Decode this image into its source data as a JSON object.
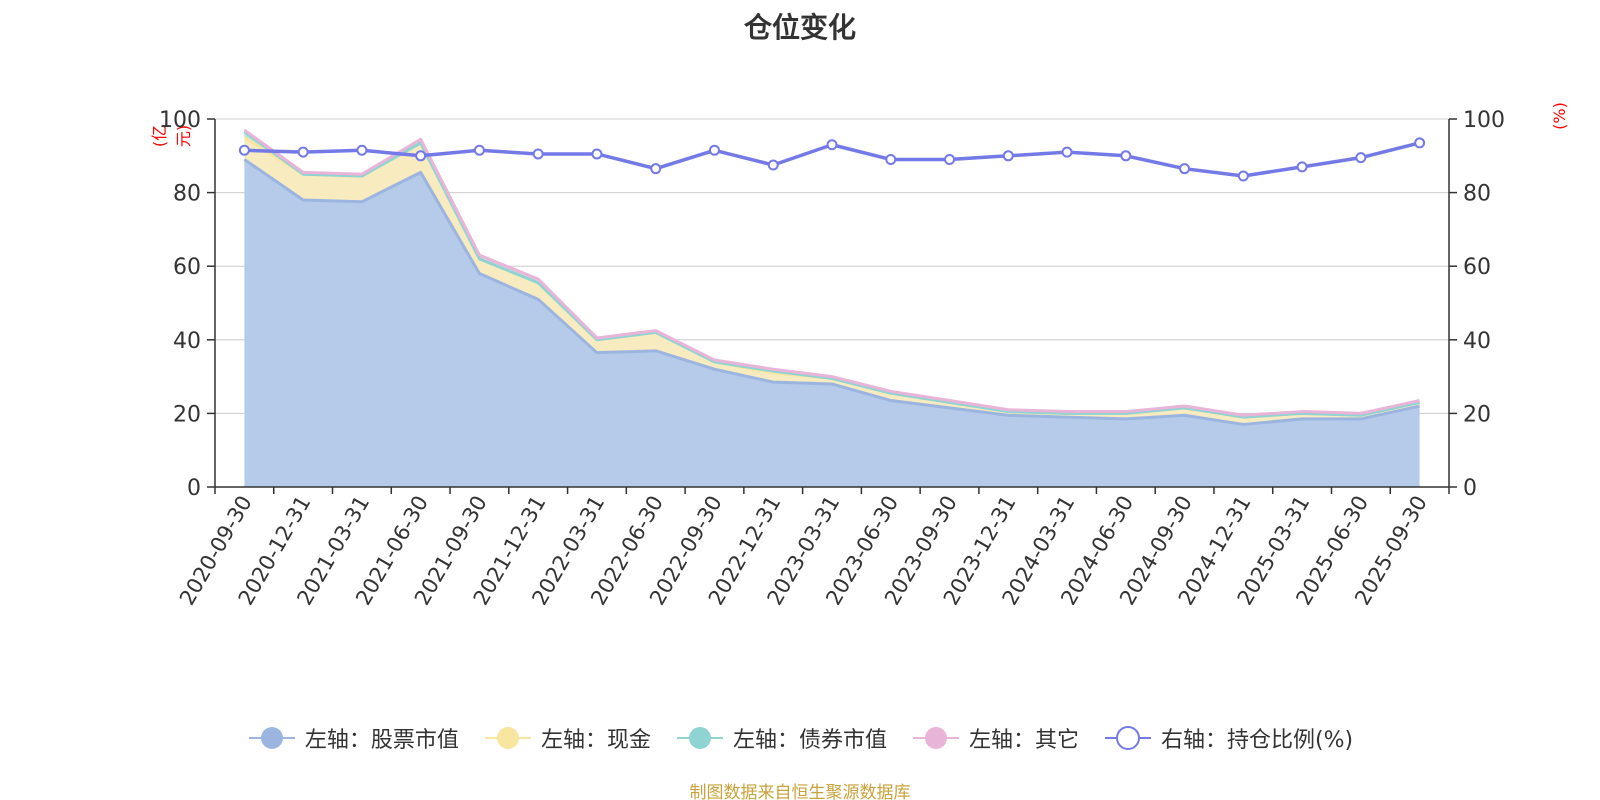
{
  "chart_data": {
    "type": "area",
    "title": "仓位变化",
    "left_unit": "(亿元)",
    "right_unit": "(%)",
    "categories": [
      "2020-09-30",
      "2020-12-31",
      "2021-03-31",
      "2021-06-30",
      "2021-09-30",
      "2021-12-31",
      "2022-03-31",
      "2022-06-30",
      "2022-09-30",
      "2022-12-31",
      "2023-03-31",
      "2023-06-30",
      "2023-09-30",
      "2023-12-31",
      "2024-03-31",
      "2024-06-30",
      "2024-09-30",
      "2024-12-31",
      "2025-03-31",
      "2025-06-30",
      "2025-09-30"
    ],
    "left_axis": {
      "min": 0,
      "max": 100,
      "ticks": [
        0,
        20,
        40,
        60,
        80,
        100
      ]
    },
    "right_axis": {
      "min": 0,
      "max": 100,
      "ticks": [
        0,
        20,
        40,
        60,
        80,
        100
      ]
    },
    "stacked_series": [
      {
        "name": "左轴：股票市值",
        "color": "#9bb5e0",
        "fill": "#b6cae9",
        "values": [
          89,
          78,
          77.5,
          85.5,
          58,
          51,
          36.5,
          37,
          32,
          28.5,
          28,
          23.5,
          21.5,
          19.5,
          19,
          18.5,
          19.5,
          17,
          18.5,
          18.5,
          22
        ]
      },
      {
        "name": "左轴：现金",
        "color": "#f8e5a0",
        "fill": "#f8ebc0",
        "values": [
          6,
          7,
          7,
          8,
          4,
          4.5,
          3.5,
          5,
          2,
          2.5,
          1.5,
          2,
          1.5,
          1,
          1,
          1.5,
          2,
          2,
          1.5,
          1,
          1
        ]
      },
      {
        "name": "左轴：债券市值",
        "color": "#8fd3d3",
        "fill": "#b4e2e0",
        "values": [
          1.5,
          0,
          0,
          0,
          0,
          0,
          0,
          0,
          0,
          0.5,
          0,
          0,
          0,
          0,
          0,
          0,
          0,
          0,
          0,
          0,
          0
        ]
      },
      {
        "name": "左轴：其它",
        "color": "#e8b4d8",
        "fill": "#f0cde3",
        "values": [
          0.5,
          0.5,
          0.5,
          1,
          1,
          1,
          0.5,
          0.5,
          0.5,
          0.5,
          0.5,
          0.5,
          0.5,
          0.5,
          0.5,
          0.5,
          0.5,
          0.5,
          0.5,
          0.5,
          0.5
        ]
      }
    ],
    "line_series": {
      "name": "右轴：持仓比例(%)",
      "color": "#7479e8",
      "values": [
        91.5,
        91,
        91.5,
        90,
        91.5,
        90.5,
        90.5,
        86.5,
        91.5,
        87.5,
        93,
        89,
        89,
        90,
        91,
        90,
        86.5,
        84.5,
        87,
        89.5,
        93.5
      ]
    }
  },
  "legend": [
    {
      "label": "左轴：股票市值",
      "color": "#9bb5e0",
      "marker": "filled"
    },
    {
      "label": "左轴：现金",
      "color": "#f8e5a0",
      "marker": "filled"
    },
    {
      "label": "左轴：债券市值",
      "color": "#8fd3d3",
      "marker": "filled"
    },
    {
      "label": "左轴：其它",
      "color": "#e8b4d8",
      "marker": "filled"
    },
    {
      "label": "右轴：持仓比例(%)",
      "color": "#7479e8",
      "marker": "hollow"
    }
  ],
  "source_text": "制图数据来自恒生聚源数据库"
}
